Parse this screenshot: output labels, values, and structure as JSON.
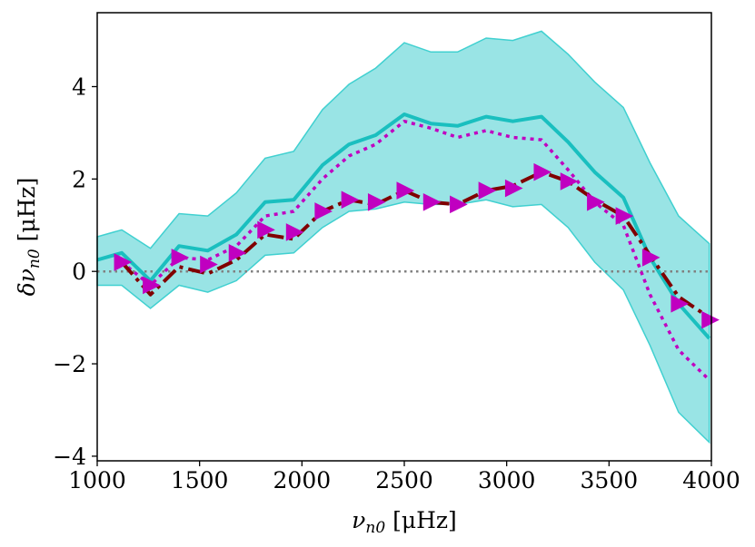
{
  "chart_data": {
    "type": "line",
    "title": "",
    "xlabel": "ν_n0 [μHz]",
    "ylabel": "δν_n0 [μHz]",
    "xlim": [
      1000,
      4000
    ],
    "ylim": [
      -4.1,
      5.6
    ],
    "xticks": [
      1000,
      1500,
      2000,
      2500,
      3000,
      3500,
      4000
    ],
    "yticks": [
      -4,
      -2,
      0,
      2,
      4
    ],
    "ytick_labels": [
      "−4",
      "−2",
      "0",
      "2",
      "4"
    ],
    "reference_line": {
      "y": 0,
      "style": "dotted",
      "color": "#808080"
    },
    "band": {
      "name": "band",
      "color": "#7fdddf",
      "edge_color": "#40d0d0",
      "x": [
        1000,
        1120,
        1260,
        1400,
        1540,
        1680,
        1820,
        1960,
        2100,
        2230,
        2360,
        2500,
        2630,
        2760,
        2900,
        3030,
        3170,
        3300,
        3430,
        3570,
        3700,
        3840,
        3990
      ],
      "upper": [
        0.75,
        0.9,
        0.5,
        1.25,
        1.2,
        1.7,
        2.45,
        2.6,
        3.5,
        4.05,
        4.4,
        4.95,
        4.75,
        4.75,
        5.05,
        5.0,
        5.2,
        4.7,
        4.1,
        3.55,
        2.35,
        1.2,
        0.6
      ],
      "lower": [
        -0.3,
        -0.3,
        -0.8,
        -0.3,
        -0.45,
        -0.2,
        0.35,
        0.4,
        0.95,
        1.3,
        1.35,
        1.5,
        1.45,
        1.45,
        1.55,
        1.4,
        1.45,
        0.95,
        0.2,
        -0.4,
        -1.6,
        -3.05,
        -3.7
      ]
    },
    "series": [
      {
        "name": "solid",
        "color": "#1abfbf",
        "style": "solid",
        "x": [
          1000,
          1120,
          1260,
          1400,
          1540,
          1680,
          1820,
          1960,
          2100,
          2230,
          2360,
          2500,
          2630,
          2760,
          2900,
          3030,
          3170,
          3300,
          3430,
          3570,
          3700,
          3840,
          3990
        ],
        "values": [
          0.25,
          0.4,
          -0.2,
          0.55,
          0.45,
          0.8,
          1.5,
          1.55,
          2.3,
          2.75,
          2.95,
          3.4,
          3.2,
          3.15,
          3.35,
          3.25,
          3.35,
          2.8,
          2.15,
          1.6,
          0.3,
          -0.7,
          -1.45
        ]
      },
      {
        "name": "dotted",
        "color": "#c000c0",
        "style": "dotted",
        "x": [
          1120,
          1260,
          1400,
          1540,
          1680,
          1820,
          1960,
          2100,
          2230,
          2360,
          2500,
          2630,
          2760,
          2900,
          3030,
          3170,
          3300,
          3430,
          3570,
          3700,
          3840,
          3990
        ],
        "values": [
          0.2,
          -0.3,
          0.3,
          0.25,
          0.55,
          1.2,
          1.3,
          2.0,
          2.5,
          2.75,
          3.25,
          3.1,
          2.9,
          3.05,
          2.9,
          2.85,
          2.2,
          1.5,
          1.0,
          -0.5,
          -1.7,
          -2.35
        ]
      },
      {
        "name": "dash-dot",
        "color": "#800000",
        "style": "dashdot",
        "x": [
          1120,
          1260,
          1400,
          1540,
          1680,
          1820,
          1960,
          2100,
          2230,
          2360,
          2500,
          2630,
          2760,
          2900,
          3030,
          3170,
          3300,
          3430,
          3570,
          3700,
          3840,
          3990
        ],
        "values": [
          0.2,
          -0.5,
          0.1,
          -0.05,
          0.25,
          0.8,
          0.7,
          1.3,
          1.55,
          1.45,
          1.75,
          1.5,
          1.45,
          1.75,
          1.85,
          2.15,
          1.95,
          1.55,
          1.2,
          0.35,
          -0.55,
          -1.0
        ]
      },
      {
        "name": "triangles",
        "color": "#c000c0",
        "style": "markers",
        "x": [
          1120,
          1260,
          1400,
          1540,
          1680,
          1820,
          1960,
          2100,
          2230,
          2360,
          2500,
          2630,
          2760,
          2900,
          3030,
          3170,
          3300,
          3430,
          3570,
          3700,
          3840,
          3990
        ],
        "values": [
          0.2,
          -0.3,
          0.3,
          0.15,
          0.4,
          0.9,
          0.85,
          1.3,
          1.55,
          1.5,
          1.75,
          1.5,
          1.45,
          1.75,
          1.8,
          2.15,
          1.95,
          1.5,
          1.2,
          0.3,
          -0.7,
          -1.05
        ]
      }
    ]
  }
}
